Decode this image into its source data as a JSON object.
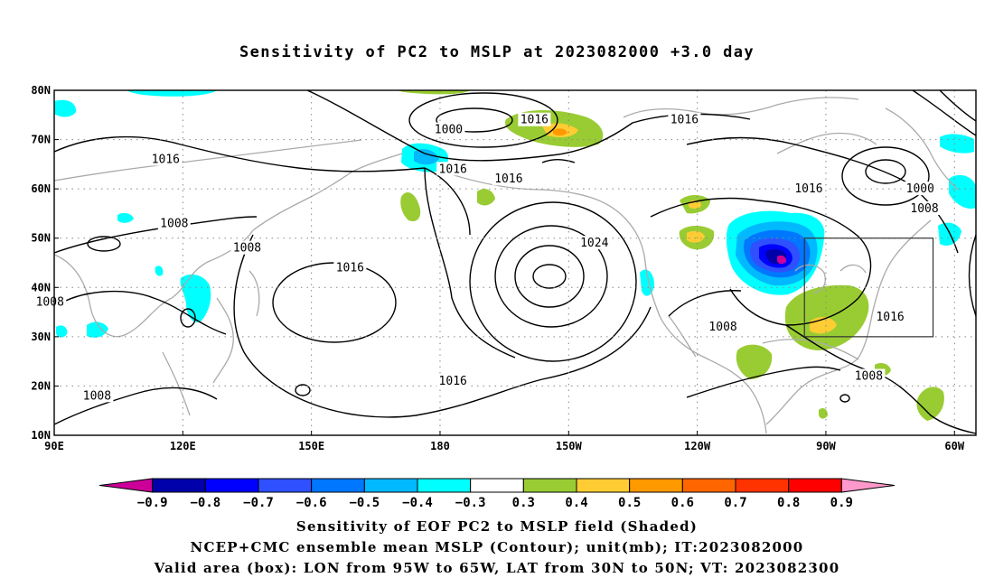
{
  "title": "Sensitivity of PC2 to MSLP at 2023082000 +3.0 day",
  "map": {
    "lon_range": [
      90,
      305
    ],
    "lat_range": [
      10,
      80
    ],
    "lon_ticks": [
      {
        "lon": 90,
        "label": "90E"
      },
      {
        "lon": 120,
        "label": "120E"
      },
      {
        "lon": 150,
        "label": "150E"
      },
      {
        "lon": 180,
        "label": "180"
      },
      {
        "lon": 210,
        "label": "150W"
      },
      {
        "lon": 240,
        "label": "120W"
      },
      {
        "lon": 270,
        "label": "90W"
      },
      {
        "lon": 300,
        "label": "60W"
      }
    ],
    "lat_ticks": [
      {
        "lat": 10,
        "label": "10N"
      },
      {
        "lat": 20,
        "label": "20N"
      },
      {
        "lat": 30,
        "label": "30N"
      },
      {
        "lat": 40,
        "label": "40N"
      },
      {
        "lat": 50,
        "label": "50N"
      },
      {
        "lat": 60,
        "label": "60N"
      },
      {
        "lat": 70,
        "label": "70N"
      },
      {
        "lat": 80,
        "label": "80N"
      }
    ],
    "grid_dotted": true,
    "valid_box": {
      "lon_min": 265,
      "lon_max": 295,
      "lat_min": 30,
      "lat_max": 50
    },
    "contour_labels": [
      {
        "text": "1000",
        "lon": 182,
        "lat": 72
      },
      {
        "text": "1016",
        "lon": 202,
        "lat": 74
      },
      {
        "text": "1016",
        "lon": 237,
        "lat": 74
      },
      {
        "text": "1016",
        "lon": 116,
        "lat": 66
      },
      {
        "text": "1016",
        "lon": 183,
        "lat": 64
      },
      {
        "text": "1016",
        "lon": 196,
        "lat": 62
      },
      {
        "text": "1016",
        "lon": 266,
        "lat": 60
      },
      {
        "text": "1000",
        "lon": 292,
        "lat": 60
      },
      {
        "text": "1008",
        "lon": 293,
        "lat": 56
      },
      {
        "text": "1008",
        "lon": 118,
        "lat": 53
      },
      {
        "text": "1008",
        "lon": 135,
        "lat": 48
      },
      {
        "text": "1024",
        "lon": 216,
        "lat": 49
      },
      {
        "text": "1016",
        "lon": 159,
        "lat": 44
      },
      {
        "text": "1008",
        "lon": 89,
        "lat": 37
      },
      {
        "text": "1008",
        "lon": 246,
        "lat": 32
      },
      {
        "text": "1016",
        "lon": 285,
        "lat": 34
      },
      {
        "text": "1016",
        "lon": 183,
        "lat": 21
      },
      {
        "text": "1008",
        "lon": 100,
        "lat": 18
      },
      {
        "text": "1008",
        "lon": 280,
        "lat": 22
      }
    ]
  },
  "colorbar": {
    "colors": [
      "#cc0099",
      "#0000aa",
      "#0000ff",
      "#2f50ff",
      "#0077ff",
      "#00b9ff",
      "#00ffff",
      "#ffffff",
      "#99cc33",
      "#ffcc33",
      "#ff9900",
      "#ff6600",
      "#ff3300",
      "#ff0000",
      "#ff99cc"
    ],
    "labels": [
      "−0.9",
      "−0.8",
      "−0.7",
      "−0.6",
      "−0.5",
      "−0.4",
      "−0.3",
      "0.3",
      "0.4",
      "0.5",
      "0.6",
      "0.7",
      "0.8",
      "0.9"
    ]
  },
  "captions": {
    "line1": "Sensitivity of EOF PC2 to MSLP field (Shaded)",
    "line2": "NCEP+CMC ensemble mean MSLP (Contour); unit(mb); IT:2023082000",
    "line3": "Valid area (box): LON from 95W to 65W, LAT from 30N to 50N; VT: 2023082300"
  }
}
